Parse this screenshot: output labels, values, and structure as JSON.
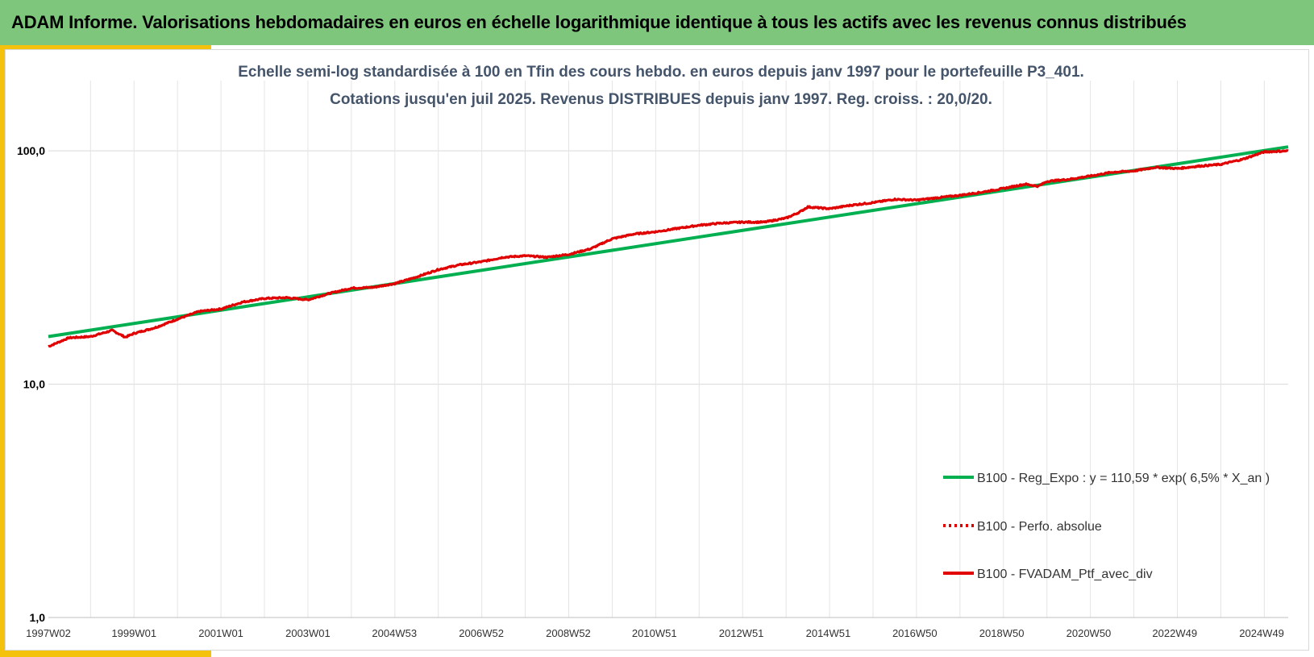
{
  "header": {
    "title": "ADAM Informe. Valorisations hebdomadaires en euros en échelle logarithmique identique à tous les actifs avec les revenus connus distribués"
  },
  "colors": {
    "header_bg": "#7dc67b",
    "accent": "#f4c20d",
    "subtitle": "#44546a",
    "series_green": "#00b050",
    "series_red": "#e00000"
  },
  "chart_data": {
    "type": "line",
    "subtitle_lines": [
      "Echelle semi-log standardisée à 100 en Tfin des cours hebdo. en euros depuis janv 1997 pour le portefeuille P3_401.",
      "Cotations jusqu'en juil 2025. Revenus DISTRIBUES depuis janv 1997. Reg. croiss. : 20,0/20."
    ],
    "y_scale": "log",
    "ylim": [
      1,
      200
    ],
    "y_ticks": [
      {
        "value": 1,
        "label": "1,0"
      },
      {
        "value": 10,
        "label": "10,0"
      },
      {
        "value": 100,
        "label": "100,0"
      }
    ],
    "xlim": [
      1997.03,
      2025.55
    ],
    "x_tick_labels": [
      {
        "x": 1997.03,
        "label": "1997W02"
      },
      {
        "x": 1999.0,
        "label": "1999W01"
      },
      {
        "x": 2001.0,
        "label": "2001W01"
      },
      {
        "x": 2003.0,
        "label": "2003W01"
      },
      {
        "x": 2004.99,
        "label": "2004W53"
      },
      {
        "x": 2006.99,
        "label": "2006W52"
      },
      {
        "x": 2008.99,
        "label": "2008W52"
      },
      {
        "x": 2010.97,
        "label": "2010W51"
      },
      {
        "x": 2012.97,
        "label": "2012W51"
      },
      {
        "x": 2014.97,
        "label": "2014W51"
      },
      {
        "x": 2016.96,
        "label": "2016W50"
      },
      {
        "x": 2018.96,
        "label": "2018W50"
      },
      {
        "x": 2020.96,
        "label": "2020W50"
      },
      {
        "x": 2022.94,
        "label": "2022W49"
      },
      {
        "x": 2024.94,
        "label": "2024W49"
      }
    ],
    "grid": true,
    "legend_position": "bottom-right",
    "series": [
      {
        "name": "B100 - Reg_Expo : y = 110,59 * exp( 6,5% *  X_an )",
        "color": "#00b050",
        "style": "solid",
        "x": [
          1997.03,
          2025.55
        ],
        "y": [
          16.0,
          104.0
        ]
      },
      {
        "name": "B100 - Perfo. absolue",
        "color": "#e00000",
        "style": "dotted",
        "x": [],
        "y": []
      },
      {
        "name": "B100 - FVADAM_Ptf_avec_div",
        "color": "#e00000",
        "style": "solid",
        "x": [
          1997.03,
          1997.5,
          1998.0,
          1998.5,
          1998.8,
          1999.0,
          1999.5,
          2000.0,
          2000.5,
          2001.0,
          2001.5,
          2002.0,
          2002.5,
          2003.0,
          2003.5,
          2004.0,
          2004.5,
          2005.0,
          2005.5,
          2006.0,
          2006.5,
          2007.0,
          2007.5,
          2008.0,
          2008.5,
          2009.0,
          2009.5,
          2010.0,
          2010.5,
          2011.0,
          2011.5,
          2012.0,
          2012.5,
          2013.0,
          2013.5,
          2014.0,
          2014.3,
          2014.5,
          2015.0,
          2015.5,
          2016.0,
          2016.5,
          2017.0,
          2017.5,
          2018.0,
          2018.5,
          2019.0,
          2019.5,
          2019.8,
          2020.0,
          2020.5,
          2021.0,
          2021.5,
          2022.0,
          2022.5,
          2023.0,
          2023.5,
          2024.0,
          2024.5,
          2025.0,
          2025.55
        ],
        "y": [
          14.5,
          15.8,
          16.0,
          17.0,
          15.9,
          16.5,
          17.5,
          19.0,
          20.5,
          21.0,
          22.5,
          23.3,
          23.5,
          23.0,
          24.5,
          25.8,
          26.0,
          27.0,
          28.8,
          31.0,
          32.5,
          33.5,
          35.0,
          35.5,
          35.0,
          36.0,
          38.0,
          42.0,
          44.0,
          45.0,
          46.5,
          48.0,
          49.0,
          49.5,
          49.5,
          51.5,
          54.5,
          57.5,
          56.5,
          58.5,
          60.0,
          62.0,
          61.5,
          63.0,
          64.5,
          66.5,
          69.0,
          72.0,
          70.5,
          74.0,
          75.5,
          78.0,
          81.0,
          82.0,
          85.0,
          84.0,
          86.0,
          87.5,
          92.0,
          99.0,
          100.0
        ]
      }
    ]
  }
}
